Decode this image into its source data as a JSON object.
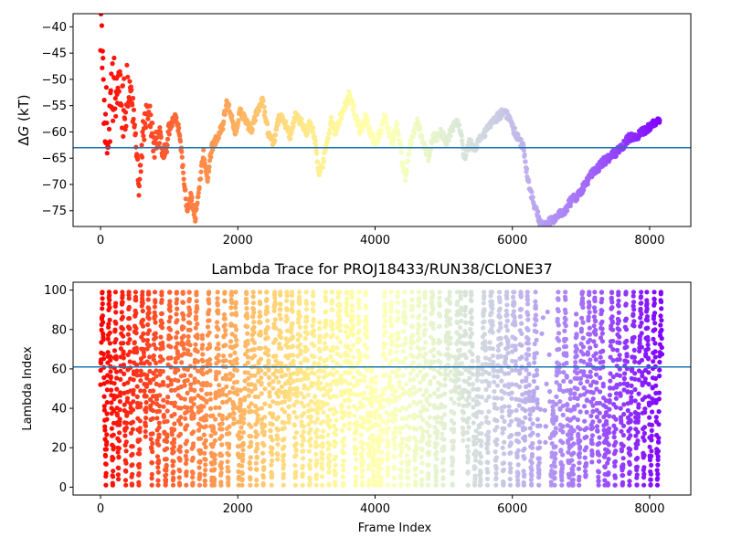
{
  "chart_data": [
    {
      "type": "scatter",
      "title": "",
      "xlabel": "",
      "ylabel": "ΔG (kT)",
      "ylabel_symbol": "Δ",
      "ylabel_var": "G",
      "ylabel_unit": " (kT)",
      "xlim": [
        -400,
        8600
      ],
      "ylim": [
        -78,
        -37.5
      ],
      "xticks": [
        0,
        2000,
        4000,
        6000,
        8000
      ],
      "xtick_labels": [
        "0",
        "2000",
        "4000",
        "6000",
        "8000"
      ],
      "yticks": [
        -40,
        -45,
        -50,
        -55,
        -60,
        -65,
        -70,
        -75
      ],
      "ytick_labels": [
        "−40",
        "−45",
        "−50",
        "−55",
        "−60",
        "−65",
        "−70",
        "−75"
      ],
      "hline": -63,
      "grid": false,
      "colormap": "rainbow (reversed: red at start, violet at end)",
      "x_range": [
        0,
        8200
      ],
      "trace_keypoints": [
        [
          0,
          -38
        ],
        [
          40,
          -52
        ],
        [
          100,
          -60
        ],
        [
          180,
          -53
        ],
        [
          260,
          -50
        ],
        [
          340,
          -56
        ],
        [
          420,
          -52
        ],
        [
          500,
          -58
        ],
        [
          560,
          -72
        ],
        [
          620,
          -60
        ],
        [
          700,
          -55
        ],
        [
          780,
          -63
        ],
        [
          860,
          -60
        ],
        [
          940,
          -65
        ],
        [
          1000,
          -60
        ],
        [
          1080,
          -57
        ],
        [
          1150,
          -60
        ],
        [
          1200,
          -67
        ],
        [
          1260,
          -75
        ],
        [
          1320,
          -72
        ],
        [
          1380,
          -77
        ],
        [
          1440,
          -70
        ],
        [
          1500,
          -64
        ],
        [
          1560,
          -69
        ],
        [
          1620,
          -63
        ],
        [
          1700,
          -61
        ],
        [
          1780,
          -59
        ],
        [
          1840,
          -54
        ],
        [
          1900,
          -57
        ],
        [
          1960,
          -60
        ],
        [
          2040,
          -56
        ],
        [
          2120,
          -58
        ],
        [
          2200,
          -60
        ],
        [
          2280,
          -56
        ],
        [
          2360,
          -54
        ],
        [
          2440,
          -60
        ],
        [
          2520,
          -62
        ],
        [
          2600,
          -57
        ],
        [
          2680,
          -58
        ],
        [
          2760,
          -61
        ],
        [
          2840,
          -57
        ],
        [
          2920,
          -58
        ],
        [
          3000,
          -60
        ],
        [
          3060,
          -58
        ],
        [
          3120,
          -61
        ],
        [
          3180,
          -68
        ],
        [
          3240,
          -66
        ],
        [
          3300,
          -62
        ],
        [
          3360,
          -58
        ],
        [
          3420,
          -60
        ],
        [
          3500,
          -57
        ],
        [
          3560,
          -55
        ],
        [
          3620,
          -53
        ],
        [
          3700,
          -56
        ],
        [
          3780,
          -60
        ],
        [
          3860,
          -57
        ],
        [
          3920,
          -60
        ],
        [
          4000,
          -62
        ],
        [
          4080,
          -60
        ],
        [
          4140,
          -57
        ],
        [
          4200,
          -60
        ],
        [
          4260,
          -62
        ],
        [
          4320,
          -58
        ],
        [
          4400,
          -66
        ],
        [
          4440,
          -69
        ],
        [
          4500,
          -63
        ],
        [
          4560,
          -60
        ],
        [
          4620,
          -58
        ],
        [
          4700,
          -62
        ],
        [
          4780,
          -65
        ],
        [
          4840,
          -61
        ],
        [
          4900,
          -61
        ],
        [
          4960,
          -60
        ],
        [
          5040,
          -62
        ],
        [
          5100,
          -60
        ],
        [
          5200,
          -58
        ],
        [
          5260,
          -61
        ],
        [
          5300,
          -65
        ],
        [
          5380,
          -62
        ],
        [
          5460,
          -63
        ],
        [
          5540,
          -61
        ],
        [
          5620,
          -60
        ],
        [
          5700,
          -58
        ],
        [
          5800,
          -57
        ],
        [
          5880,
          -56
        ],
        [
          5940,
          -57
        ],
        [
          6000,
          -59
        ],
        [
          6080,
          -61
        ],
        [
          6160,
          -63
        ],
        [
          6240,
          -70
        ],
        [
          6320,
          -74
        ],
        [
          6400,
          -77
        ],
        [
          6460,
          -78
        ],
        [
          6560,
          -77
        ],
        [
          6660,
          -76
        ],
        [
          6760,
          -75
        ],
        [
          6860,
          -73
        ],
        [
          6960,
          -72
        ],
        [
          7060,
          -70
        ],
        [
          7160,
          -68
        ],
        [
          7240,
          -67
        ],
        [
          7300,
          -66
        ],
        [
          7400,
          -65
        ],
        [
          7500,
          -64
        ],
        [
          7600,
          -63
        ],
        [
          7700,
          -61
        ],
        [
          7800,
          -61
        ],
        [
          7900,
          -60
        ],
        [
          8000,
          -59
        ],
        [
          8100,
          -58
        ],
        [
          8150,
          -58
        ]
      ]
    },
    {
      "type": "scatter",
      "title": "Lambda Trace for PROJ18433/RUN38/CLONE37",
      "xlabel": "Frame Index",
      "ylabel": "Lambda Index",
      "xlim": [
        -400,
        8600
      ],
      "ylim": [
        -4,
        104
      ],
      "xticks": [
        0,
        2000,
        4000,
        6000,
        8000
      ],
      "xtick_labels": [
        "0",
        "2000",
        "4000",
        "6000",
        "8000"
      ],
      "yticks": [
        0,
        20,
        40,
        60,
        80,
        100
      ],
      "ytick_labels": [
        "0",
        "20",
        "40",
        "60",
        "80",
        "100"
      ],
      "hline": 61,
      "grid": false,
      "colormap": "rainbow (reversed: red at start, violet at end)",
      "x_range": [
        0,
        8200
      ],
      "y_range": [
        1,
        99
      ],
      "sparse_band_x": [
        6400,
        6600
      ]
    }
  ]
}
